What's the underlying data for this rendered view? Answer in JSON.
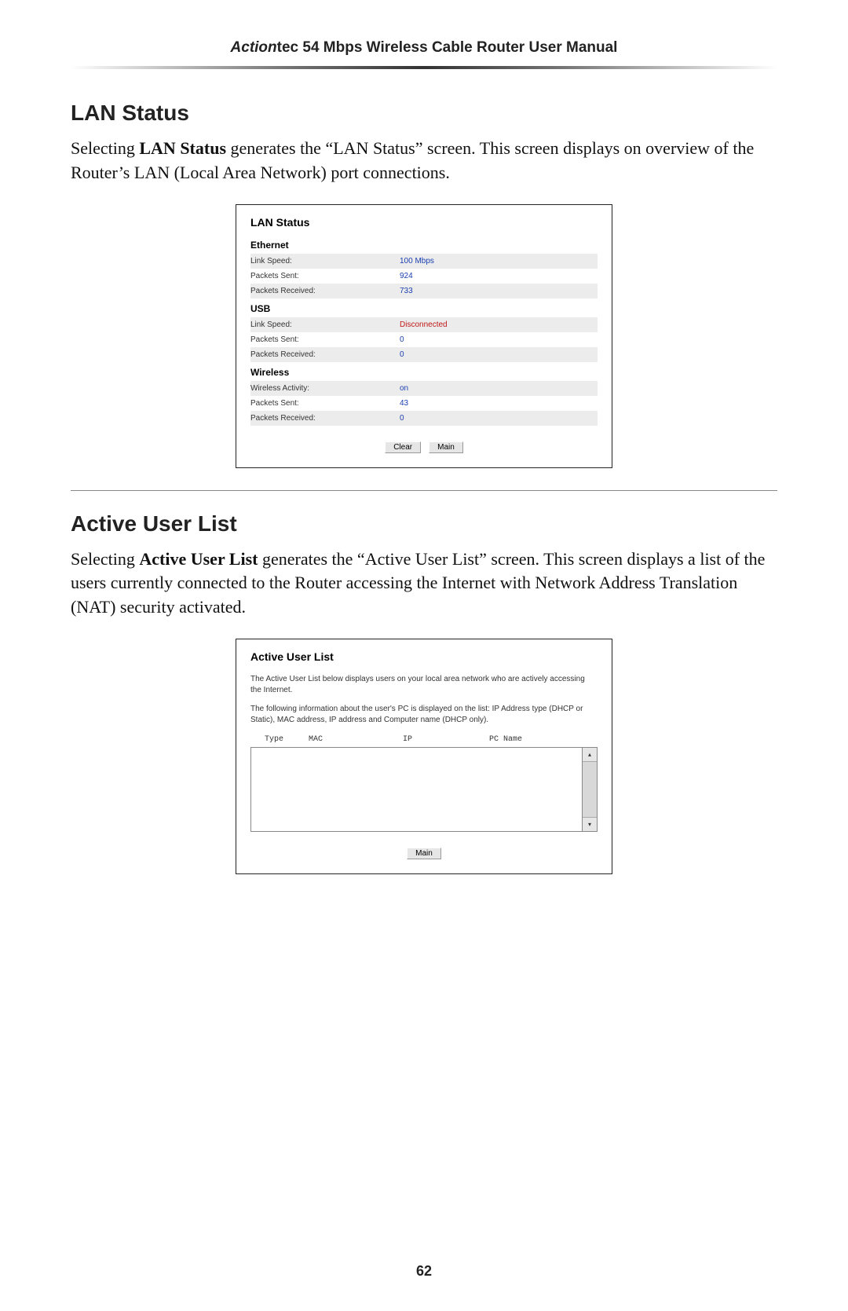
{
  "header": {
    "brand_prefix": "Action",
    "brand_suffix": "tec",
    "title_rest": " 54 Mbps Wireless Cable Router User Manual"
  },
  "lan_section": {
    "heading": "LAN Status",
    "para_pre": "Selecting ",
    "para_bold": "LAN Status",
    "para_mid1": " generates the “",
    "para_sc1": "LAN",
    "para_mid2": " Status” screen. This screen displays on overview of the Router’s ",
    "para_sc2": "LAN",
    "para_mid3": " (Local Area Network) port connections."
  },
  "lan_panel": {
    "title": "LAN Status",
    "ethernet_label": "Ethernet",
    "eth_linkspeed_label": "Link Speed:",
    "eth_linkspeed_value": "100 Mbps",
    "eth_sent_label": "Packets Sent:",
    "eth_sent_value": "924",
    "eth_recv_label": "Packets Received:",
    "eth_recv_value": "733",
    "usb_label": "USB",
    "usb_linkspeed_label": "Link Speed:",
    "usb_linkspeed_value": "Disconnected",
    "usb_sent_label": "Packets Sent:",
    "usb_sent_value": "0",
    "usb_recv_label": "Packets Received:",
    "usb_recv_value": "0",
    "wireless_label": "Wireless",
    "w_activity_label": "Wireless Activity:",
    "w_activity_value": "on",
    "w_sent_label": "Packets Sent:",
    "w_sent_value": "43",
    "w_recv_label": "Packets Received:",
    "w_recv_value": "0",
    "clear_btn": "Clear",
    "main_btn": "Main"
  },
  "aul_section": {
    "heading": "Active User List",
    "para_pre": "Selecting ",
    "para_bold": "Active User List",
    "para_mid1": " generates the “Active User List” screen. This screen displays a list of the users currently connected to the Router accessing the Internet with Network Address Translation (",
    "para_sc1": "NAT",
    "para_mid2": ") security activated."
  },
  "aul_panel": {
    "title": "Active User List",
    "desc1": "The Active User List below displays users on your local area network who are actively accessing the Internet.",
    "desc2": "The following information about the user's PC is displayed on the list: IP Address type (DHCP or Static), MAC address, IP address and Computer name (DHCP only).",
    "col_type": "Type",
    "col_mac": "MAC",
    "col_ip": "IP",
    "col_pcname": "PC Name",
    "main_btn": "Main"
  },
  "page_number": "62"
}
